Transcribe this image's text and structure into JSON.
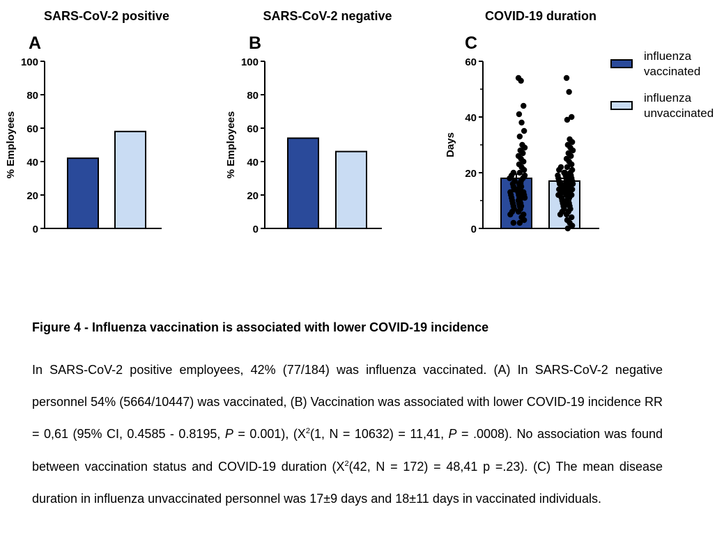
{
  "chart_data": [
    {
      "panel": "A",
      "type": "bar",
      "title": "SARS-CoV-2 positive",
      "ylabel": "% Employees",
      "ylim": [
        0,
        100
      ],
      "yticks": [
        "0",
        "20",
        "40",
        "60",
        "80",
        "100"
      ],
      "yticks_values": [
        0,
        20,
        40,
        60,
        80,
        100
      ],
      "categories": [
        "influenza vaccinated",
        "influenza unvaccinated"
      ],
      "values": [
        42,
        58
      ]
    },
    {
      "panel": "B",
      "type": "bar",
      "title": "SARS-CoV-2 negative",
      "ylabel": "% Employees",
      "ylim": [
        0,
        100
      ],
      "yticks": [
        "0",
        "20",
        "40",
        "60",
        "80",
        "100"
      ],
      "yticks_values": [
        0,
        20,
        40,
        60,
        80,
        100
      ],
      "categories": [
        "influenza vaccinated",
        "influenza unvaccinated"
      ],
      "values": [
        54,
        46
      ]
    },
    {
      "panel": "C",
      "type": "bar",
      "title": "COVID-19 duration",
      "ylabel": "Days",
      "ylim": [
        0,
        60
      ],
      "yticks": [
        "0",
        "20",
        "40",
        "60"
      ],
      "yticks_values": [
        0,
        20,
        40,
        60
      ],
      "categories": [
        "influenza vaccinated",
        "influenza unvaccinated"
      ],
      "values": [
        18,
        17
      ],
      "error": [
        1.5,
        1.0
      ],
      "points": [
        [
          54,
          53,
          44,
          41,
          38,
          35,
          33,
          30,
          29,
          28,
          27,
          26,
          25,
          24,
          23,
          22,
          21,
          20,
          20,
          19,
          19,
          18,
          18,
          17,
          17,
          16,
          16,
          16,
          15,
          15,
          15,
          14,
          14,
          14,
          14,
          13,
          13,
          13,
          12,
          12,
          12,
          11,
          11,
          11,
          10,
          10,
          10,
          9,
          9,
          9,
          8,
          8,
          8,
          7,
          7,
          6,
          6,
          5,
          5,
          4,
          3,
          2,
          2
        ],
        [
          54,
          49,
          40,
          39,
          32,
          31,
          30,
          29,
          28,
          27,
          26,
          25,
          24,
          23,
          22,
          22,
          21,
          21,
          20,
          20,
          20,
          19,
          19,
          19,
          18,
          18,
          18,
          17,
          17,
          17,
          16,
          16,
          16,
          16,
          15,
          15,
          15,
          15,
          14,
          14,
          14,
          14,
          13,
          13,
          13,
          13,
          12,
          12,
          12,
          12,
          11,
          11,
          11,
          10,
          10,
          10,
          9,
          9,
          9,
          8,
          8,
          8,
          7,
          7,
          6,
          6,
          5,
          5,
          4,
          3,
          2,
          1,
          0
        ]
      ]
    }
  ],
  "legend": {
    "items": [
      {
        "label_line1": "influenza",
        "label_line2": "vaccinated"
      },
      {
        "label_line1": "influenza",
        "label_line2": "unvaccinated"
      }
    ]
  },
  "colors": {
    "vaccinated": "#2a4a9a",
    "unvaccinated": "#c9dcf3",
    "axis": "#000000",
    "point": "#000000"
  },
  "caption": {
    "title": "Figure 4 - Influenza vaccination is associated with lower COVID-19 incidence",
    "p1": "In SARS-CoV-2 positive employees, 42% (77/184) was influenza vaccinated. (A) In SARS-CoV-2 negative personnel 54% (5664/10447) was vaccinated, (B) Vaccination was associated with lower COVID-19 incidence RR = 0,61 (95% CI, 0.4585 - 0.8195, ",
    "p_italic_1": "P",
    "p2": " = 0.001), (X",
    "sup_1": "2",
    "p3": "(1, N = 10632) = 11,41, ",
    "p_italic_2": "P",
    "p4": " = .0008). No association was found between vaccination status and COVID-19 duration (X",
    "sup_2": "2",
    "p5": "(42, N = 172) = 48,41 p =.23). (C) The mean disease duration in influenza unvaccinated personnel was 17±9 days and 18±11 days in vaccinated individuals."
  }
}
